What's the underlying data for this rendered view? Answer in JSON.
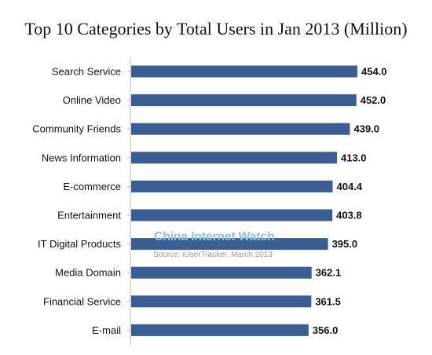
{
  "chart_data": {
    "type": "bar",
    "orientation": "horizontal",
    "title": "Top 10 Categories by Total Users in Jan 2013  (Million)",
    "categories": [
      "Search Service",
      "Online Video",
      "Community Friends",
      "News Information",
      "E-commerce",
      "Entertainment",
      "IT Digital Products",
      "Media Domain",
      "Financial Service",
      "E-mail"
    ],
    "values": [
      454.0,
      452.0,
      439.0,
      413.0,
      404.4,
      403.8,
      395.0,
      362.1,
      361.5,
      356.0
    ],
    "value_labels": [
      "454.0",
      "452.0",
      "439.0",
      "413.0",
      "404.4",
      "403.8",
      "395.0",
      "362.1",
      "361.5",
      "356.0"
    ],
    "xlim": [
      0,
      454
    ],
    "grid": false,
    "legend": "none",
    "bar_color": "#3a5d93"
  },
  "watermark": {
    "brand": "China Internet Watch",
    "source": "Source: iUserTracker, March 2013"
  }
}
